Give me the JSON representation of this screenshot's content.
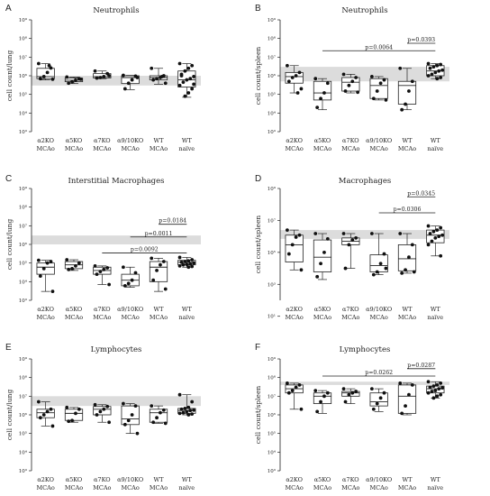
{
  "chart_data": [
    {
      "type": "boxplot",
      "panel": "A",
      "title": "Neutrophils",
      "ylabel": "cell count/lung",
      "yscale": "log",
      "ylim": [
        1000,
        1000000000
      ],
      "yticks": [
        "10³",
        "10⁴",
        "10⁵",
        "10⁶",
        "10⁷",
        "10⁸",
        "10⁹"
      ],
      "reference_band": [
        300000,
        1000000
      ],
      "categories": [
        "α2KO MCAo",
        "α5KO MCAo",
        "α7KO MCAo",
        "α9/10KO MCAo",
        "WT MCAo",
        "WT naïve"
      ],
      "series": [
        {
          "min": 600000,
          "q1": 700000,
          "median": 900000,
          "q3": 2500000,
          "max": 4500000,
          "points": [
            4500000,
            2600000,
            1500000,
            900000,
            700000,
            650000,
            3500000
          ]
        },
        {
          "min": 380000,
          "q1": 480000,
          "median": 580000,
          "q3": 750000,
          "max": 850000,
          "points": [
            850000,
            700000,
            580000,
            480000,
            400000,
            650000
          ]
        },
        {
          "min": 700000,
          "q1": 760000,
          "median": 900000,
          "q3": 1300000,
          "max": 1800000,
          "points": [
            1800000,
            1300000,
            900000,
            800000,
            750000,
            1000000
          ]
        },
        {
          "min": 180000,
          "q1": 380000,
          "median": 800000,
          "q3": 1000000,
          "max": 1050000,
          "points": [
            1050000,
            950000,
            600000,
            400000,
            200000,
            800000
          ]
        },
        {
          "min": 350000,
          "q1": 600000,
          "median": 800000,
          "q3": 1000000,
          "max": 2500000,
          "points": [
            2500000,
            1000000,
            800000,
            700000,
            600000,
            400000,
            900000
          ]
        },
        {
          "min": 70000,
          "q1": 250000,
          "median": 600000,
          "q3": 1800000,
          "max": 4500000,
          "points": [
            4500000,
            3500000,
            2500000,
            1800000,
            1200000,
            900000,
            700000,
            600000,
            450000,
            300000,
            200000,
            120000,
            80000,
            1000000,
            350000
          ]
        }
      ],
      "annotations": []
    },
    {
      "type": "boxplot",
      "panel": "B",
      "title": "Neutrophils",
      "ylabel": "cell count/spleen",
      "yscale": "log",
      "ylim": [
        1000,
        1000000000
      ],
      "yticks": [
        "10³",
        "10⁴",
        "10⁵",
        "10⁶",
        "10⁷",
        "10⁸",
        "10⁹"
      ],
      "reference_band": [
        500000,
        3000000
      ],
      "categories": [
        "α2KO MCAo",
        "α5KO MCAo",
        "α7KO MCAo",
        "α9/10KO MCAo",
        "WT MCAo",
        "WT naïve"
      ],
      "series": [
        {
          "min": 120000,
          "q1": 400000,
          "median": 900000,
          "q3": 1500000,
          "max": 3500000,
          "points": [
            3500000,
            1500000,
            1000000,
            800000,
            500000,
            200000,
            120000
          ]
        },
        {
          "min": 15000,
          "q1": 50000,
          "median": 120000,
          "q3": 500000,
          "max": 700000,
          "points": [
            700000,
            400000,
            120000,
            60000,
            20000
          ]
        },
        {
          "min": 120000,
          "q1": 150000,
          "median": 450000,
          "q3": 800000,
          "max": 1200000,
          "points": [
            1200000,
            800000,
            500000,
            300000,
            150000,
            130000
          ]
        },
        {
          "min": 50000,
          "q1": 60000,
          "median": 300000,
          "q3": 700000,
          "max": 900000,
          "points": [
            900000,
            600000,
            400000,
            150000,
            60000,
            50000
          ]
        },
        {
          "min": 15000,
          "q1": 30000,
          "median": 300000,
          "q3": 500000,
          "max": 2500000,
          "points": [
            2500000,
            500000,
            150000,
            30000,
            15000
          ]
        },
        {
          "min": 700000,
          "q1": 1000000,
          "median": 1800000,
          "q3": 3500000,
          "max": 4500000,
          "points": [
            4500000,
            4000000,
            3500000,
            3000000,
            2500000,
            2000000,
            1800000,
            1500000,
            1200000,
            1000000,
            800000,
            700000
          ]
        }
      ],
      "annotations": [
        {
          "from": 1,
          "to": 5,
          "value": 22000000,
          "label": "p=0.0064"
        },
        {
          "from": 4,
          "to": 5,
          "value": 55000000,
          "label": "p=0.0393"
        }
      ]
    },
    {
      "type": "boxplot",
      "panel": "C",
      "title": "Interstitial Macrophages",
      "ylabel": "cell count/lung",
      "yscale": "log",
      "ylim": [
        1000,
        1000000000
      ],
      "yticks": [
        "10³",
        "10⁴",
        "10⁵",
        "10⁶",
        "10⁷",
        "10⁸",
        "10⁹"
      ],
      "reference_band": [
        1000000,
        3000000
      ],
      "categories": [
        "α2KO MCAo",
        "α5KO MCAo",
        "α7KO MCAo",
        "α9/10KO MCAo",
        "WT MCAo",
        "WT naïve"
      ],
      "series": [
        {
          "min": 3000,
          "q1": 25000,
          "median": 60000,
          "q3": 100000,
          "max": 140000,
          "points": [
            140000,
            120000,
            100000,
            50000,
            20000,
            3000
          ]
        },
        {
          "min": 40000,
          "q1": 50000,
          "median": 80000,
          "q3": 120000,
          "max": 150000,
          "points": [
            150000,
            100000,
            70000,
            50000,
            45000
          ]
        },
        {
          "min": 7000,
          "q1": 25000,
          "median": 40000,
          "q3": 60000,
          "max": 70000,
          "points": [
            70000,
            55000,
            45000,
            35000,
            25000,
            7000
          ]
        },
        {
          "min": 5000,
          "q1": 6000,
          "median": 12000,
          "q3": 25000,
          "max": 60000,
          "points": [
            60000,
            30000,
            12000,
            8000,
            6000
          ]
        },
        {
          "min": 3000,
          "q1": 10000,
          "median": 60000,
          "q3": 120000,
          "max": 180000,
          "points": [
            180000,
            120000,
            80000,
            40000,
            12000,
            4000
          ]
        },
        {
          "min": 60000,
          "q1": 80000,
          "median": 110000,
          "q3": 140000,
          "max": 200000,
          "points": [
            200000,
            150000,
            130000,
            120000,
            110000,
            100000,
            90000,
            85000,
            80000,
            70000,
            65000,
            60000
          ]
        }
      ],
      "annotations": [
        {
          "from": 2,
          "to": 5,
          "value": 350000,
          "label": "p=0.0092"
        },
        {
          "from": 3,
          "to": 5,
          "value": 2500000,
          "label": "p=0.0011"
        },
        {
          "from": 4,
          "to": 5,
          "value": 12000000,
          "label": "p=0.0184"
        }
      ]
    },
    {
      "type": "boxplot",
      "panel": "D",
      "title": "Macrophages",
      "ylabel": "cell count/spleen",
      "yscale": "log",
      "ylim": [
        100,
        1000000000
      ],
      "yticks": [
        "10¹",
        "10³",
        "10⁵",
        "10⁷",
        "10⁹"
      ],
      "tick_values": [
        10,
        1000,
        100000,
        10000000,
        1000000000
      ],
      "reference_band": [
        700000,
        2500000
      ],
      "categories": [
        "α2KO MCAo",
        "α5KO MCAo",
        "α7KO MCAo",
        "α9/10KO MCAo",
        "WT MCAo",
        "WT naïve"
      ],
      "series": [
        {
          "min": 8000,
          "q1": 25000,
          "median": 300000,
          "q3": 1200000,
          "max": 2500000,
          "points": [
            2500000,
            1200000,
            900000,
            300000,
            80000,
            8000
          ]
        },
        {
          "min": 2000,
          "q1": 6000,
          "median": 50000,
          "q3": 600000,
          "max": 1500000,
          "points": [
            1500000,
            700000,
            100000,
            20000,
            3000
          ]
        },
        {
          "min": 10000,
          "q1": 300000,
          "median": 500000,
          "q3": 800000,
          "max": 1500000,
          "points": [
            1500000,
            800000,
            600000,
            300000,
            10000
          ]
        },
        {
          "min": 4000,
          "q1": 6000,
          "median": 15000,
          "q3": 70000,
          "max": 1500000,
          "points": [
            1500000,
            80000,
            20000,
            6000,
            4000,
            10000
          ]
        },
        {
          "min": 5000,
          "q1": 7000,
          "median": 40000,
          "q3": 300000,
          "max": 1500000,
          "points": [
            1500000,
            300000,
            50000,
            8000,
            5000,
            6000
          ]
        },
        {
          "min": 60000,
          "q1": 400000,
          "median": 1200000,
          "q3": 2500000,
          "max": 4500000,
          "points": [
            4500000,
            3500000,
            2500000,
            2000000,
            1500000,
            1200000,
            1000000,
            800000,
            500000,
            300000,
            60000
          ]
        }
      ],
      "annotations": [
        {
          "from": 3,
          "to": 5,
          "value": 30000000,
          "label": "p=0.0306"
        },
        {
          "from": 4,
          "to": 5,
          "value": 300000000,
          "label": "p=0.0345"
        }
      ]
    },
    {
      "type": "boxplot",
      "panel": "E",
      "title": "Lymphocytes",
      "ylabel": "cell count/lung",
      "yscale": "log",
      "ylim": [
        1000,
        1000000000
      ],
      "yticks": [
        "10³",
        "10⁴",
        "10⁵",
        "10⁶",
        "10⁷",
        "10⁸",
        "10⁹"
      ],
      "reference_band": [
        3000000,
        10000000
      ],
      "categories": [
        "α2KO MCAo",
        "α5KO MCAo",
        "α7KO MCAo",
        "α9/10KO MCAo",
        "WT MCAo",
        "WT naïve"
      ],
      "series": [
        {
          "min": 250000,
          "q1": 700000,
          "median": 1300000,
          "q3": 2000000,
          "max": 5000000,
          "points": [
            5000000,
            2000000,
            1500000,
            1000000,
            700000,
            250000
          ]
        },
        {
          "min": 400000,
          "q1": 500000,
          "median": 1200000,
          "q3": 2000000,
          "max": 2500000,
          "points": [
            2500000,
            2000000,
            1200000,
            500000,
            450000
          ]
        },
        {
          "min": 400000,
          "q1": 1000000,
          "median": 2000000,
          "q3": 2800000,
          "max": 3500000,
          "points": [
            3500000,
            2800000,
            2000000,
            1500000,
            1000000,
            400000
          ]
        },
        {
          "min": 100000,
          "q1": 300000,
          "median": 600000,
          "q3": 3000000,
          "max": 4000000,
          "points": [
            4000000,
            3000000,
            1000000,
            500000,
            300000,
            100000
          ]
        },
        {
          "min": 350000,
          "q1": 400000,
          "median": 1300000,
          "q3": 2000000,
          "max": 3000000,
          "points": [
            3000000,
            1800000,
            1300000,
            700000,
            400000,
            350000
          ]
        },
        {
          "min": 1000000,
          "q1": 1200000,
          "median": 1700000,
          "q3": 2200000,
          "max": 12000000,
          "points": [
            12000000,
            5000000,
            2500000,
            2200000,
            2000000,
            1800000,
            1700000,
            1500000,
            1300000,
            1200000,
            1100000,
            1000000
          ]
        }
      ],
      "annotations": []
    },
    {
      "type": "boxplot",
      "panel": "F",
      "title": "Lymphocytes",
      "ylabel": "cell count/spleen",
      "yscale": "log",
      "ylim": [
        1000,
        1000000000
      ],
      "yticks": [
        "10³",
        "10⁴",
        "10⁵",
        "10⁶",
        "10⁷",
        "10⁸",
        "10⁹"
      ],
      "reference_band": [
        40000000,
        60000000
      ],
      "categories": [
        "α2KO MCAo",
        "α5KO MCAo",
        "α7KO MCAo",
        "α9/10KO MCAo",
        "WT MCAo",
        "WT naïve"
      ],
      "series": [
        {
          "min": 2000000,
          "q1": 15000000,
          "median": 25000000,
          "q3": 40000000,
          "max": 50000000,
          "points": [
            50000000,
            40000000,
            30000000,
            20000000,
            15000000,
            2000000
          ]
        },
        {
          "min": 1200000,
          "q1": 4000000,
          "median": 10000000,
          "q3": 15000000,
          "max": 20000000,
          "points": [
            20000000,
            15000000,
            10000000,
            5000000,
            1500000
          ]
        },
        {
          "min": 4000000,
          "q1": 10000000,
          "median": 15000000,
          "q3": 18000000,
          "max": 25000000,
          "points": [
            25000000,
            18000000,
            15000000,
            12000000,
            5000000
          ]
        },
        {
          "min": 1500000,
          "q1": 3000000,
          "median": 5000000,
          "q3": 15000000,
          "max": 25000000,
          "points": [
            25000000,
            15000000,
            8000000,
            4000000,
            2000000
          ]
        },
        {
          "min": 1000000,
          "q1": 1200000,
          "median": 10000000,
          "q3": 40000000,
          "max": 50000000,
          "points": [
            50000000,
            40000000,
            12000000,
            3000000,
            1200000
          ]
        },
        {
          "min": 8000000,
          "q1": 15000000,
          "median": 25000000,
          "q3": 35000000,
          "max": 60000000,
          "points": [
            60000000,
            50000000,
            40000000,
            35000000,
            30000000,
            28000000,
            25000000,
            20000000,
            18000000,
            15000000,
            12000000,
            10000000,
            8000000
          ]
        }
      ],
      "annotations": [
        {
          "from": 1,
          "to": 5,
          "value": 120000000,
          "label": "p=0.0262"
        },
        {
          "from": 4,
          "to": 5,
          "value": 300000000,
          "label": "p=0.0287"
        }
      ]
    }
  ]
}
